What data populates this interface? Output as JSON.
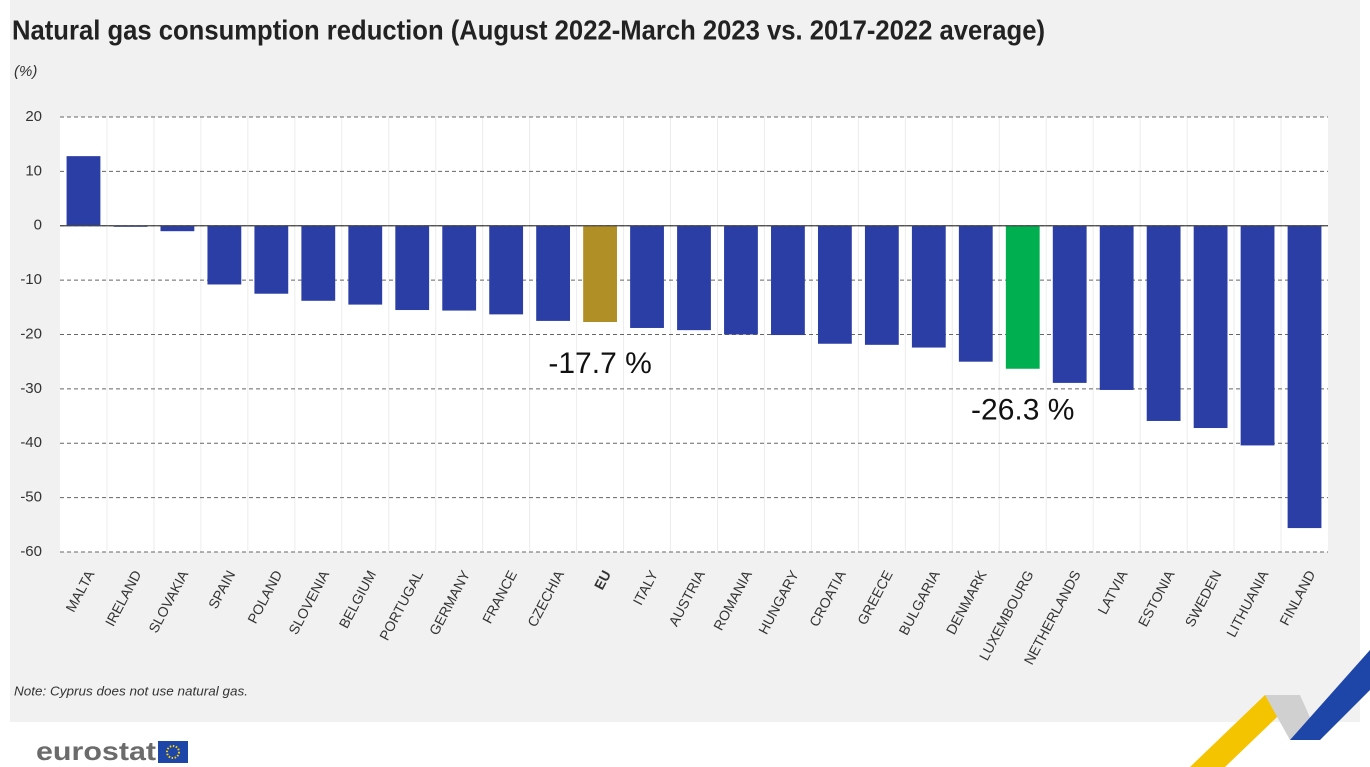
{
  "chart_data": {
    "type": "bar",
    "title": "Natural gas consumption reduction (August 2022-March 2023 vs. 2017-2022 average)",
    "subtitle": "(%)",
    "note": "Note: Cyprus does not use natural gas.",
    "categories": [
      "MALTA",
      "IRELAND",
      "SLOVAKIA",
      "SPAIN",
      "POLAND",
      "SLOVENIA",
      "BELGIUM",
      "PORTUGAL",
      "GERMANY",
      "FRANCE",
      "CZECHIA",
      "EU",
      "ITALY",
      "AUSTRIA",
      "ROMANIA",
      "HUNGARY",
      "CROATIA",
      "GREECE",
      "BULGARIA",
      "DENMARK",
      "LUXEMBOURG",
      "NETHERLANDS",
      "LATVIA",
      "ESTONIA",
      "SWEDEN",
      "LITHUANIA",
      "FINLAND"
    ],
    "values": [
      12.8,
      -0.2,
      -1,
      -10.8,
      -12.5,
      -13.8,
      -14.5,
      -15.5,
      -15.6,
      -16.3,
      -17.5,
      -17.7,
      -18.8,
      -19.2,
      -20,
      -20.1,
      -21.7,
      -21.9,
      -22.4,
      -25,
      -26.3,
      -28.9,
      -30.2,
      -35.9,
      -37.2,
      -40.4,
      -55.6
    ],
    "value_labels": [
      null,
      null,
      null,
      null,
      null,
      null,
      null,
      null,
      null,
      null,
      null,
      "-17.7 %",
      null,
      null,
      null,
      null,
      null,
      null,
      null,
      null,
      "-26.3 %",
      null,
      null,
      null,
      null,
      null,
      null
    ],
    "colors": [
      "#2a3ea6",
      "#2a3ea6",
      "#2a3ea6",
      "#2a3ea6",
      "#2a3ea6",
      "#2a3ea6",
      "#2a3ea6",
      "#2a3ea6",
      "#2a3ea6",
      "#2a3ea6",
      "#2a3ea6",
      "#b08f26",
      "#2a3ea6",
      "#2a3ea6",
      "#2a3ea6",
      "#2a3ea6",
      "#2a3ea6",
      "#2a3ea6",
      "#2a3ea6",
      "#2a3ea6",
      "#00b050",
      "#2a3ea6",
      "#2a3ea6",
      "#2a3ea6",
      "#2a3ea6",
      "#2a3ea6",
      "#2a3ea6"
    ],
    "highlight": "EU",
    "ylim": [
      -60,
      20
    ],
    "yticks": [
      20,
      10,
      0,
      -10,
      -20,
      -30,
      -40,
      -50,
      -60
    ],
    "grid": true
  },
  "logo": "eurostat"
}
